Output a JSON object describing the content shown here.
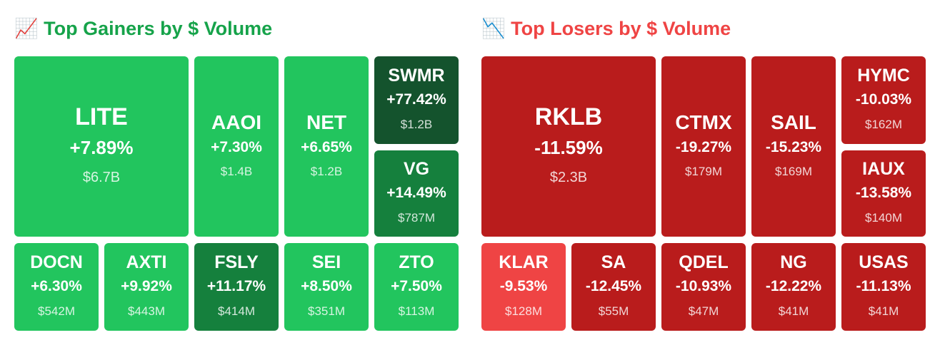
{
  "panels": [
    {
      "title": "📈 Top Gainers by $ Volume",
      "title_color": "#16a34a",
      "tiles": [
        {
          "ticker": "LITE",
          "change": "+7.89%",
          "volume": "$6.7B",
          "color": "#22c55e"
        },
        {
          "ticker": "AAOI",
          "change": "+7.30%",
          "volume": "$1.4B",
          "color": "#22c55e"
        },
        {
          "ticker": "NET",
          "change": "+6.65%",
          "volume": "$1.2B",
          "color": "#22c55e"
        },
        {
          "ticker": "SWMR",
          "change": "+77.42%",
          "volume": "$1.2B",
          "color": "#14532d"
        },
        {
          "ticker": "VG",
          "change": "+14.49%",
          "volume": "$787M",
          "color": "#15803d"
        },
        {
          "ticker": "DOCN",
          "change": "+6.30%",
          "volume": "$542M",
          "color": "#22c55e"
        },
        {
          "ticker": "AXTI",
          "change": "+9.92%",
          "volume": "$443M",
          "color": "#22c55e"
        },
        {
          "ticker": "FSLY",
          "change": "+11.17%",
          "volume": "$414M",
          "color": "#15803d"
        },
        {
          "ticker": "SEI",
          "change": "+8.50%",
          "volume": "$351M",
          "color": "#22c55e"
        },
        {
          "ticker": "ZTO",
          "change": "+7.50%",
          "volume": "$113M",
          "color": "#22c55e"
        }
      ]
    },
    {
      "title": "📉 Top Losers by $ Volume",
      "title_color": "#ef4444",
      "tiles": [
        {
          "ticker": "RKLB",
          "change": "-11.59%",
          "volume": "$2.3B",
          "color": "#b91c1c"
        },
        {
          "ticker": "CTMX",
          "change": "-19.27%",
          "volume": "$179M",
          "color": "#b91c1c"
        },
        {
          "ticker": "SAIL",
          "change": "-15.23%",
          "volume": "$169M",
          "color": "#b91c1c"
        },
        {
          "ticker": "HYMC",
          "change": "-10.03%",
          "volume": "$162M",
          "color": "#b91c1c"
        },
        {
          "ticker": "IAUX",
          "change": "-13.58%",
          "volume": "$140M",
          "color": "#b91c1c"
        },
        {
          "ticker": "KLAR",
          "change": "-9.53%",
          "volume": "$128M",
          "color": "#ef4444"
        },
        {
          "ticker": "SA",
          "change": "-12.45%",
          "volume": "$55M",
          "color": "#b91c1c"
        },
        {
          "ticker": "QDEL",
          "change": "-10.93%",
          "volume": "$47M",
          "color": "#b91c1c"
        },
        {
          "ticker": "NG",
          "change": "-12.22%",
          "volume": "$41M",
          "color": "#b91c1c"
        },
        {
          "ticker": "USAS",
          "change": "-11.13%",
          "volume": "$41M",
          "color": "#b91c1c"
        }
      ]
    }
  ]
}
